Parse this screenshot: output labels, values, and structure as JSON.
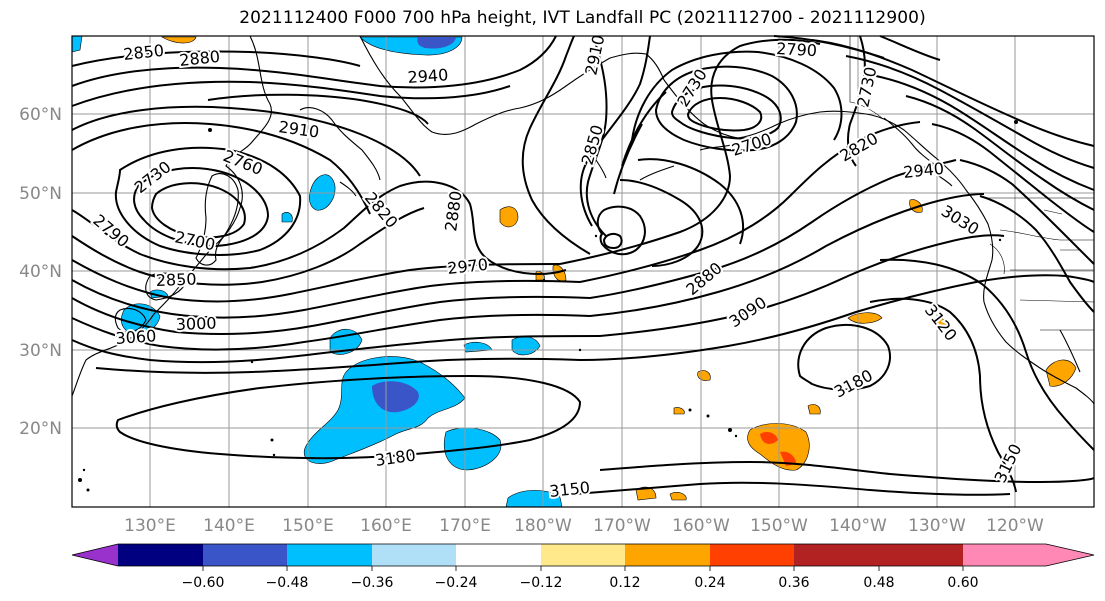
{
  "title": "2021112400 F000 700 hPa height, IVT Landfall PC (2021112700 - 2021112900)",
  "map": {
    "lat_labels": [
      "60°N",
      "50°N",
      "40°N",
      "30°N",
      "20°N"
    ],
    "lon_labels": [
      "130°E",
      "140°E",
      "150°E",
      "160°E",
      "170°E",
      "180°W",
      "170°W",
      "160°W",
      "150°W",
      "140°W",
      "130°W",
      "120°W"
    ],
    "contour_labels": [
      "2850",
      "2880",
      "2940",
      "2910",
      "2790",
      "2730",
      "2760",
      "2850",
      "2730",
      "2700",
      "2820",
      "2940",
      "2910",
      "2730",
      "2700",
      "2820",
      "2880",
      "2790",
      "2850",
      "2970",
      "3000",
      "3060",
      "2880",
      "3090",
      "3030",
      "3120",
      "3180",
      "3180",
      "3150",
      "3150"
    ],
    "colors": {
      "neg_dark": "#3a55c8",
      "neg": "#00bfff",
      "neg_light": "#b0e0f8",
      "pos_light": "#fde68a",
      "pos": "#ffa500",
      "pos_dark": "#ff4000"
    }
  },
  "colorbar": {
    "ticks": [
      "−0.60",
      "−0.48",
      "−0.36",
      "−0.24",
      "−0.12",
      "0.12",
      "0.24",
      "0.36",
      "0.48",
      "0.60"
    ],
    "colors": [
      "#9932cc",
      "#000080",
      "#3a55c8",
      "#00bfff",
      "#b0e0f8",
      "#ffffff",
      "#ffe98a",
      "#ffa500",
      "#ff4000",
      "#b22222",
      "#ff88b4"
    ]
  }
}
